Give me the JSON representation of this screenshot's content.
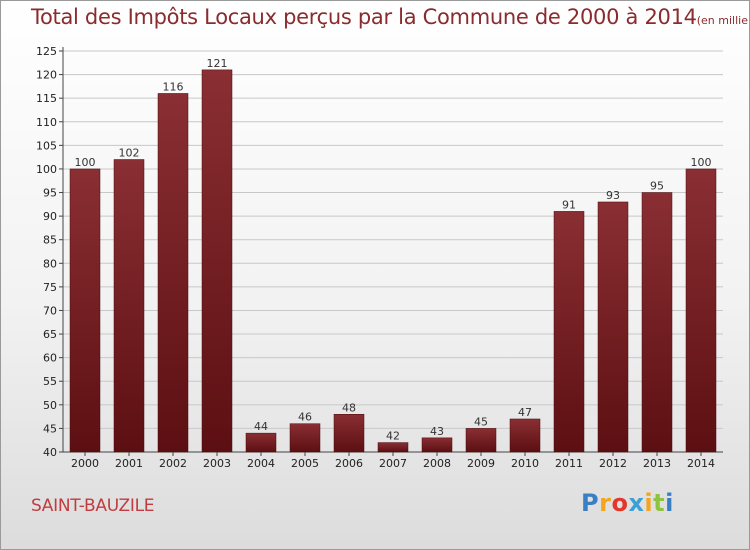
{
  "title": "Total des Impôts Locaux perçus par la Commune de 2000 à 2014",
  "unit_note": "(en milliers d'€)",
  "commune": "SAINT-BAUZILE",
  "brand": {
    "letters": [
      "P",
      "r",
      "o",
      "x",
      "i",
      "t",
      "i"
    ]
  },
  "colors": {
    "bar_top": "#8a2f33",
    "bar_bottom": "#5c0f12",
    "title": "#8a2b2e",
    "commune": "#c23b3f",
    "grid": "#c8c8c8"
  },
  "chart_data": {
    "type": "bar",
    "title": "Total des Impôts Locaux perçus par la Commune de 2000 à 2014",
    "xlabel": "",
    "ylabel": "",
    "categories": [
      "2000",
      "2001",
      "2002",
      "2003",
      "2004",
      "2005",
      "2006",
      "2007",
      "2008",
      "2009",
      "2010",
      "2011",
      "2012",
      "2013",
      "2014"
    ],
    "values": [
      100,
      102,
      116,
      121,
      44,
      46,
      48,
      42,
      43,
      45,
      47,
      91,
      93,
      95,
      100
    ],
    "ylim": [
      40,
      125
    ],
    "yticks": [
      40,
      45,
      50,
      55,
      60,
      65,
      70,
      75,
      80,
      85,
      90,
      95,
      100,
      105,
      110,
      115,
      120,
      125
    ],
    "grid": true
  }
}
